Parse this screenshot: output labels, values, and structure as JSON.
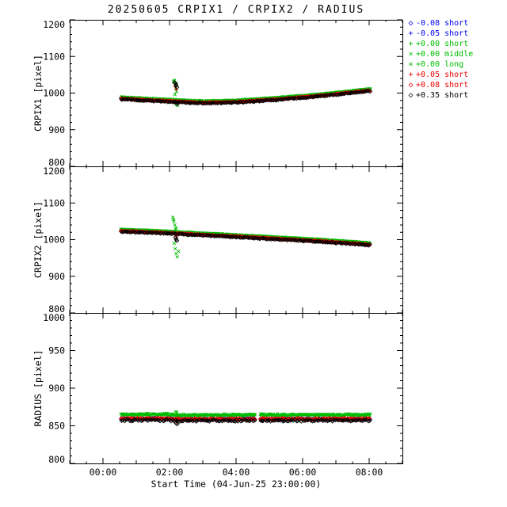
{
  "title": "20250605 CRPIX1 / CRPIX2 / RADIUS",
  "legend": {
    "items": [
      {
        "symbol": "◇",
        "label": "-0.08 short",
        "color": "#0000ee"
      },
      {
        "symbol": "+",
        "label": "-0.05 short",
        "color": "#0000ee"
      },
      {
        "symbol": "+",
        "label": "+0.00 short",
        "color": "#00bb00"
      },
      {
        "symbol": "×",
        "label": "+0.00 middle",
        "color": "#00bb00"
      },
      {
        "symbol": "×",
        "label": "+0.00 long",
        "color": "#00bb00"
      },
      {
        "symbol": "+",
        "label": "+0.05 short",
        "color": "#ee0000"
      },
      {
        "symbol": "◇",
        "label": "+0.08 short",
        "color": "#ee0000"
      },
      {
        "symbol": "◇",
        "label": "+0.35 short",
        "color": "#000000"
      }
    ]
  },
  "chart_data": {
    "type": "scatter",
    "title": "20250605 CRPIX1 / CRPIX2 / RADIUS",
    "xaxis": {
      "label": "Start Time (04-Jun-25 23:00:00)",
      "lim": [
        -1,
        9
      ],
      "ticks": [
        0,
        2,
        4,
        6,
        8
      ],
      "tick_labels": [
        "00:00",
        "02:00",
        "04:00",
        "06:00",
        "08:00"
      ],
      "minor_step": 0.5
    },
    "panels": [
      {
        "name": "CRPIX1",
        "ylabel": "CRPIX1 [pixel]",
        "ylim": [
          800,
          1200
        ],
        "yticks": [
          800,
          900,
          1000,
          1100,
          1200
        ],
        "minor_step": 20,
        "gaps": [],
        "base_points": [
          [
            0.55,
            985
          ],
          [
            1,
            983
          ],
          [
            1.5,
            980.5
          ],
          [
            2,
            978.5
          ],
          [
            2.5,
            976
          ],
          [
            3,
            974.5
          ],
          [
            3.5,
            975
          ],
          [
            4,
            976.5
          ],
          [
            4.5,
            979
          ],
          [
            5,
            982
          ],
          [
            5.5,
            985.5
          ],
          [
            6,
            989
          ],
          [
            6.5,
            993
          ],
          [
            7,
            997.5
          ],
          [
            7.5,
            1002.5
          ],
          [
            8.05,
            1008
          ]
        ],
        "series": [
          {
            "name": "-0.08 short",
            "color": "#0000ee",
            "marker": "diamond",
            "offset": 1.5,
            "jitter": 1.0,
            "extras": []
          },
          {
            "name": "-0.05 short",
            "color": "#0000ee",
            "marker": "plus",
            "offset": 1.0,
            "jitter": 1.0,
            "extras": []
          },
          {
            "name": "+0.00 short",
            "color": "#00bb00",
            "marker": "plus",
            "offset": 3.5,
            "jitter": 1.0,
            "extras": []
          },
          {
            "name": "+0.00 middle",
            "color": "#00bb00",
            "marker": "cross",
            "offset": 4.0,
            "jitter": 1.0,
            "extras": [
              [
                2.12,
                1031
              ],
              [
                2.15,
                1035
              ],
              [
                2.17,
                1024
              ],
              [
                2.19,
                1014
              ],
              [
                2.21,
                1004
              ],
              [
                2.16,
                996
              ],
              [
                2.2,
                969
              ],
              [
                2.24,
                966
              ]
            ]
          },
          {
            "name": "+0.00 long",
            "color": "#00bb00",
            "marker": "cross",
            "offset": 4.5,
            "jitter": 1.0,
            "extras": [
              [
                2.14,
                1033
              ],
              [
                2.2,
                1026
              ]
            ]
          },
          {
            "name": "+0.05 short",
            "color": "#ee0000",
            "marker": "plus",
            "offset": 0,
            "jitter": 1.0,
            "extras": [
              [
                2.17,
                1018
              ],
              [
                2.2,
                1010
              ]
            ]
          },
          {
            "name": "+0.08 short",
            "color": "#ee0000",
            "marker": "diamond",
            "offset": -0.5,
            "jitter": 1.0,
            "extras": []
          },
          {
            "name": "+0.35 short",
            "color": "#000000",
            "marker": "diamond",
            "offset": -2,
            "jitter": 1.3,
            "extras": [
              [
                2.15,
                1029
              ],
              [
                2.18,
                1026
              ],
              [
                2.2,
                1021
              ],
              [
                2.22,
                1016
              ],
              [
                2.2,
                973
              ],
              [
                2.23,
                970
              ]
            ]
          }
        ]
      },
      {
        "name": "CRPIX2",
        "ylabel": "CRPIX2 [pixel]",
        "ylim": [
          800,
          1200
        ],
        "yticks": [
          800,
          900,
          1000,
          1100,
          1200
        ],
        "minor_step": 20,
        "gaps": [],
        "base_points": [
          [
            0.55,
            1024
          ],
          [
            1,
            1022.5
          ],
          [
            1.5,
            1020.5
          ],
          [
            2,
            1018.5
          ],
          [
            2.5,
            1016
          ],
          [
            3,
            1013.5
          ],
          [
            3.5,
            1011.5
          ],
          [
            4,
            1009
          ],
          [
            4.5,
            1006.5
          ],
          [
            5,
            1004
          ],
          [
            5.5,
            1001.5
          ],
          [
            6,
            999
          ],
          [
            6.5,
            996.5
          ],
          [
            7,
            993.5
          ],
          [
            7.5,
            990.5
          ],
          [
            8.05,
            986.5
          ]
        ],
        "series": [
          {
            "name": "-0.08 short",
            "color": "#0000ee",
            "marker": "diamond",
            "offset": 1.5,
            "jitter": 1.0,
            "extras": []
          },
          {
            "name": "-0.05 short",
            "color": "#0000ee",
            "marker": "plus",
            "offset": 1.0,
            "jitter": 1.0,
            "extras": []
          },
          {
            "name": "+0.00 short",
            "color": "#00bb00",
            "marker": "plus",
            "offset": 3.5,
            "jitter": 1.0,
            "extras": []
          },
          {
            "name": "+0.00 middle",
            "color": "#00bb00",
            "marker": "cross",
            "offset": 4.0,
            "jitter": 1.0,
            "extras": [
              [
                2.1,
                1061
              ],
              [
                2.13,
                1050
              ],
              [
                2.16,
                1040
              ],
              [
                2.18,
                1028
              ],
              [
                2.14,
                990
              ],
              [
                2.17,
                975
              ],
              [
                2.2,
                962
              ],
              [
                2.23,
                953
              ],
              [
                2.27,
                968
              ]
            ]
          },
          {
            "name": "+0.00 long",
            "color": "#00bb00",
            "marker": "cross",
            "offset": 4.5,
            "jitter": 1.0,
            "extras": [
              [
                2.12,
                1055
              ],
              [
                2.2,
                1032
              ]
            ]
          },
          {
            "name": "+0.05 short",
            "color": "#ee0000",
            "marker": "plus",
            "offset": 0,
            "jitter": 1.0,
            "extras": [
              [
                2.19,
                1009
              ]
            ]
          },
          {
            "name": "+0.08 short",
            "color": "#ee0000",
            "marker": "diamond",
            "offset": -0.5,
            "jitter": 1.0,
            "extras": []
          },
          {
            "name": "+0.35 short",
            "color": "#000000",
            "marker": "diamond",
            "offset": -2,
            "jitter": 1.3,
            "extras": [
              [
                2.18,
                1006
              ],
              [
                2.2,
                1001
              ],
              [
                2.22,
                997
              ]
            ]
          }
        ]
      },
      {
        "name": "RADIUS",
        "ylabel": "RADIUS [pixel]",
        "ylim": [
          800,
          1000
        ],
        "yticks": [
          800,
          850,
          900,
          950,
          1000
        ],
        "minor_step": 10,
        "gaps": [
          [
            4.58,
            4.7
          ]
        ],
        "base_points": [
          [
            0.55,
            859
          ],
          [
            2,
            859
          ],
          [
            2.2,
            858
          ],
          [
            4,
            858.5
          ],
          [
            6,
            858.5
          ],
          [
            8.05,
            858.5
          ]
        ],
        "series": [
          {
            "name": "-0.08 short",
            "color": "#0000ee",
            "marker": "diamond",
            "offset": 0.5,
            "jitter": 1.0,
            "extras": []
          },
          {
            "name": "-0.05 short",
            "color": "#0000ee",
            "marker": "plus",
            "offset": 0.5,
            "jitter": 1.0,
            "extras": []
          },
          {
            "name": "+0.00 short",
            "color": "#00bb00",
            "marker": "plus",
            "offset": 5.5,
            "jitter": 1.1,
            "extras": []
          },
          {
            "name": "+0.00 middle",
            "color": "#00bb00",
            "marker": "cross",
            "offset": 6.0,
            "jitter": 1.1,
            "extras": [
              [
                2.18,
                868.5
              ],
              [
                2.22,
                868
              ]
            ]
          },
          {
            "name": "+0.00 long",
            "color": "#00bb00",
            "marker": "cross",
            "offset": 6.5,
            "jitter": 1.1,
            "extras": []
          },
          {
            "name": "+0.05 short",
            "color": "#ee0000",
            "marker": "plus",
            "offset": 1.0,
            "jitter": 1.0,
            "extras": [
              [
                2.2,
                855.5
              ]
            ]
          },
          {
            "name": "+0.08 short",
            "color": "#ee0000",
            "marker": "diamond",
            "offset": 0.5,
            "jitter": 1.0,
            "extras": []
          },
          {
            "name": "+0.35 short",
            "color": "#000000",
            "marker": "diamond",
            "offset": -1.5,
            "jitter": 1.2,
            "extras": [
              [
                2.2,
                853.5
              ],
              [
                2.23,
                852.5
              ]
            ]
          }
        ]
      }
    ]
  }
}
